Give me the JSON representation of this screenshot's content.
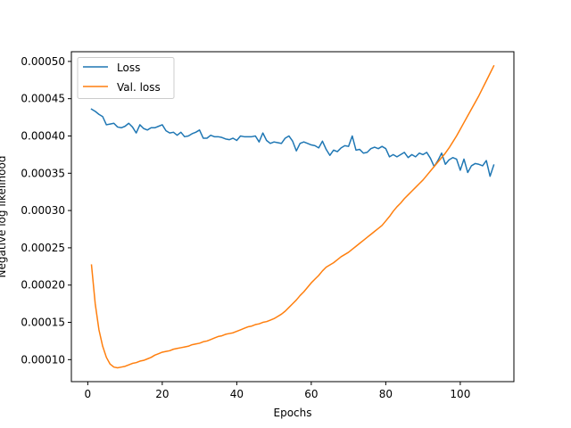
{
  "chart_data": {
    "type": "line",
    "title": "",
    "xlabel": "Epochs",
    "ylabel": "Negative log likelihood",
    "xlim": [
      -4.4,
      114.4
    ],
    "ylim": [
      7.05e-05,
      0.000513
    ],
    "xticks": [
      0,
      20,
      40,
      60,
      80,
      100
    ],
    "yticks": [
      0.0001,
      0.00015,
      0.0002,
      0.00025,
      0.0003,
      0.00035,
      0.0004,
      0.00045,
      0.0005
    ],
    "ytick_labels": [
      "0.00010",
      "0.00015",
      "0.00020",
      "0.00025",
      "0.00030",
      "0.00035",
      "0.00040",
      "0.00045",
      "0.00050"
    ],
    "grid": false,
    "legend_position": "upper left",
    "series": [
      {
        "name": "Loss",
        "color": "#1f77b4",
        "x": [
          1,
          2,
          3,
          4,
          5,
          6,
          7,
          8,
          9,
          10,
          11,
          12,
          13,
          14,
          15,
          16,
          17,
          18,
          19,
          20,
          21,
          22,
          23,
          24,
          25,
          26,
          27,
          28,
          29,
          30,
          31,
          32,
          33,
          34,
          35,
          36,
          37,
          38,
          39,
          40,
          41,
          42,
          43,
          44,
          45,
          46,
          47,
          48,
          49,
          50,
          51,
          52,
          53,
          54,
          55,
          56,
          57,
          58,
          59,
          60,
          61,
          62,
          63,
          64,
          65,
          66,
          67,
          68,
          69,
          70,
          71,
          72,
          73,
          74,
          75,
          76,
          77,
          78,
          79,
          80,
          81,
          82,
          83,
          84,
          85,
          86,
          87,
          88,
          89,
          90,
          91,
          92,
          93,
          94,
          95,
          96,
          97,
          98,
          99,
          100,
          101,
          102,
          103,
          104,
          105,
          106,
          107,
          108,
          109
        ],
        "y": [
          0.000436,
          0.000433,
          0.000429,
          0.000426,
          0.000415,
          0.000416,
          0.000417,
          0.000412,
          0.000411,
          0.000413,
          0.000417,
          0.000412,
          0.000404,
          0.000415,
          0.00041,
          0.000408,
          0.000411,
          0.000411,
          0.000413,
          0.000415,
          0.000407,
          0.000404,
          0.000405,
          0.000401,
          0.000405,
          0.000399,
          0.0004,
          0.000403,
          0.000405,
          0.000408,
          0.000397,
          0.000397,
          0.000401,
          0.000399,
          0.000399,
          0.000398,
          0.000396,
          0.000395,
          0.000397,
          0.000394,
          0.0004,
          0.000399,
          0.000399,
          0.000399,
          0.0004,
          0.000392,
          0.000404,
          0.000394,
          0.00039,
          0.000392,
          0.000391,
          0.00039,
          0.000397,
          0.0004,
          0.000393,
          0.00038,
          0.00039,
          0.000392,
          0.00039,
          0.000388,
          0.000387,
          0.000384,
          0.000393,
          0.000382,
          0.000374,
          0.000381,
          0.000379,
          0.000384,
          0.000387,
          0.000386,
          0.0004,
          0.000381,
          0.000382,
          0.000377,
          0.000378,
          0.000383,
          0.000385,
          0.000383,
          0.000386,
          0.000383,
          0.000372,
          0.000375,
          0.000372,
          0.000375,
          0.000378,
          0.000371,
          0.000375,
          0.000372,
          0.000377,
          0.000375,
          0.000378,
          0.00037,
          0.000359,
          0.000367,
          0.000377,
          0.000362,
          0.000368,
          0.000371,
          0.000369,
          0.000354,
          0.000369,
          0.000351,
          0.00036,
          0.000363,
          0.000362,
          0.00036,
          0.000367,
          0.000346,
          0.000361
        ]
      },
      {
        "name": "Val. loss",
        "color": "#ff7f0e",
        "x": [
          1,
          2,
          3,
          4,
          5,
          6,
          7,
          8,
          9,
          10,
          11,
          12,
          13,
          14,
          15,
          16,
          17,
          18,
          19,
          20,
          21,
          22,
          23,
          24,
          25,
          26,
          27,
          28,
          29,
          30,
          31,
          32,
          33,
          34,
          35,
          36,
          37,
          38,
          39,
          40,
          41,
          42,
          43,
          44,
          45,
          46,
          47,
          48,
          49,
          50,
          51,
          52,
          53,
          54,
          55,
          56,
          57,
          58,
          59,
          60,
          61,
          62,
          63,
          64,
          65,
          66,
          67,
          68,
          69,
          70,
          71,
          72,
          73,
          74,
          75,
          76,
          77,
          78,
          79,
          80,
          81,
          82,
          83,
          84,
          85,
          86,
          87,
          88,
          89,
          90,
          91,
          92,
          93,
          94,
          95,
          96,
          97,
          98,
          99,
          100,
          101,
          102,
          103,
          104,
          105,
          106,
          107,
          108,
          109
        ],
        "y": [
          0.000227,
          0.000175,
          0.00014,
          0.000118,
          0.000103,
          9.4e-05,
          9e-05,
          8.9e-05,
          9e-05,
          9.1e-05,
          9.3e-05,
          9.5e-05,
          9.6e-05,
          9.8e-05,
          9.9e-05,
          0.000101,
          0.000103,
          0.000106,
          0.000108,
          0.00011,
          0.000111,
          0.000112,
          0.000114,
          0.000115,
          0.000116,
          0.000117,
          0.000118,
          0.00012,
          0.000121,
          0.000122,
          0.000124,
          0.000125,
          0.000127,
          0.000129,
          0.000131,
          0.000132,
          0.000134,
          0.000135,
          0.000136,
          0.000138,
          0.00014,
          0.000142,
          0.000144,
          0.000145,
          0.000147,
          0.000148,
          0.00015,
          0.000151,
          0.000153,
          0.000155,
          0.000158,
          0.000161,
          0.000165,
          0.00017,
          0.000175,
          0.00018,
          0.000186,
          0.000191,
          0.000197,
          0.000203,
          0.000208,
          0.000213,
          0.000219,
          0.000224,
          0.000227,
          0.00023,
          0.000234,
          0.000238,
          0.000241,
          0.000244,
          0.000248,
          0.000252,
          0.000256,
          0.00026,
          0.000264,
          0.000268,
          0.000272,
          0.000276,
          0.00028,
          0.000286,
          0.000292,
          0.000299,
          0.000305,
          0.00031,
          0.000316,
          0.000321,
          0.000326,
          0.000331,
          0.000336,
          0.000341,
          0.000347,
          0.000353,
          0.000359,
          0.000365,
          0.000371,
          0.000377,
          0.000384,
          0.000392,
          0.0004,
          0.000409,
          0.000418,
          0.000427,
          0.000436,
          0.000445,
          0.000454,
          0.000464,
          0.000474,
          0.000484,
          0.000494
        ]
      }
    ]
  }
}
